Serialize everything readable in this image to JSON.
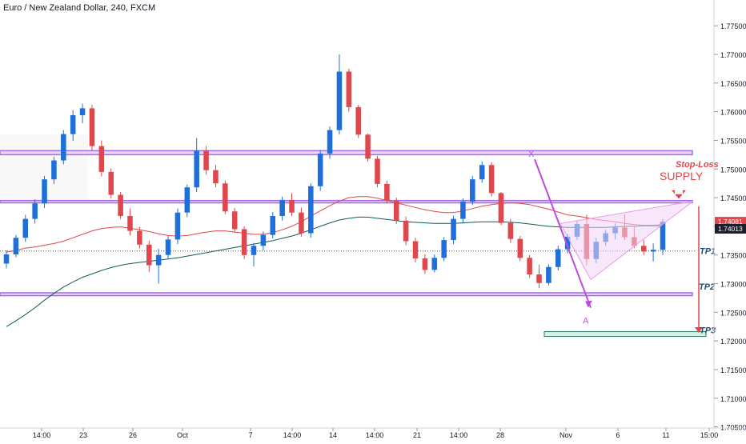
{
  "header": {
    "title": "Euro / New Zealand Dollar, 240, FXCM"
  },
  "colors": {
    "up": "#1e6fd9",
    "down": "#e0474c",
    "ma_fast": "#e0474c",
    "ma_slow": "#0c5b5b",
    "zone_border": "#a66be8",
    "zone_fill": "#e7d7fb",
    "pattern": "#c04be0",
    "tp_line": "#e0474c",
    "price_up": "#e0474c",
    "price_slow": "#1a1f2b",
    "tp3_box": "#2e7d6b"
  },
  "chart_data": {
    "type": "line",
    "ylim": [
      1.7055,
      1.7795
    ],
    "y_ticks": [
      "1.77500",
      "1.77000",
      "1.76500",
      "1.76000",
      "1.75500",
      "1.75000",
      "1.74500",
      "1.74000",
      "1.73500",
      "1.73000",
      "1.72500",
      "1.72000",
      "1.71500",
      "1.71000",
      "1.70500"
    ],
    "x_ticks": [
      "14:00",
      "23",
      "26",
      "Oct",
      "7",
      "14:00",
      "14",
      "14:00",
      "21",
      "14:00",
      "28",
      "Nov",
      "6",
      "11",
      "15:00"
    ],
    "zones": [
      {
        "name": "upper-zone",
        "y_top": 1.7532,
        "y_bottom": 1.7525
      },
      {
        "name": "middle-zone",
        "y_top": 1.7445,
        "y_bottom": 1.7441
      },
      {
        "name": "lower-zone",
        "y_top": 1.7284,
        "y_bottom": 1.7279
      }
    ],
    "tp1_level": 1.7357,
    "tp3_level": 1.7212,
    "last_price_fast": "1.74081",
    "last_price_slow": "1.74013",
    "annotations": {
      "stop_loss": "Stop-Loss",
      "supply": "SUPPLY",
      "tp1": "TP1",
      "tp2": "TP2",
      "tp3": "TP3",
      "x": "X",
      "a": "A"
    },
    "pattern": {
      "x_point": 1.7517,
      "a_point": 1.7258,
      "wedge_top_start": 1.7405,
      "wedge_bottom_start": 1.7307,
      "wedge_apex": 1.7444
    },
    "series": [
      {
        "type": "candlestick",
        "values": [
          [
            1.7335,
            1.7358,
            1.7327,
            1.7351
          ],
          [
            1.7351,
            1.7385,
            1.7346,
            1.738
          ],
          [
            1.738,
            1.742,
            1.7373,
            1.7413
          ],
          [
            1.7413,
            1.7447,
            1.7405,
            1.744
          ],
          [
            1.744,
            1.7488,
            1.7432,
            1.7482
          ],
          [
            1.7482,
            1.7521,
            1.7474,
            1.7515
          ],
          [
            1.7515,
            1.7568,
            1.7508,
            1.7561
          ],
          [
            1.7561,
            1.7603,
            1.7549,
            1.7594
          ],
          [
            1.7594,
            1.7614,
            1.758,
            1.7606
          ],
          [
            1.7606,
            1.7612,
            1.7532,
            1.754
          ],
          [
            1.754,
            1.755,
            1.7487,
            1.7495
          ],
          [
            1.7495,
            1.7501,
            1.7449,
            1.7455
          ],
          [
            1.7455,
            1.746,
            1.7413,
            1.7418
          ],
          [
            1.7418,
            1.7431,
            1.7384,
            1.7392
          ],
          [
            1.7392,
            1.7399,
            1.7361,
            1.7368
          ],
          [
            1.7368,
            1.7375,
            1.732,
            1.7332
          ],
          [
            1.7332,
            1.7361,
            1.73,
            1.735
          ],
          [
            1.735,
            1.7383,
            1.7342,
            1.7377
          ],
          [
            1.7377,
            1.7431,
            1.7369,
            1.7424
          ],
          [
            1.7424,
            1.7473,
            1.7416,
            1.7468
          ],
          [
            1.7468,
            1.7554,
            1.746,
            1.7532
          ],
          [
            1.7532,
            1.754,
            1.749,
            1.7498
          ],
          [
            1.7498,
            1.7507,
            1.7468,
            1.7475
          ],
          [
            1.7475,
            1.748,
            1.7421,
            1.7426
          ],
          [
            1.7426,
            1.7432,
            1.7389,
            1.7395
          ],
          [
            1.7395,
            1.74,
            1.7343,
            1.735
          ],
          [
            1.735,
            1.7371,
            1.733,
            1.7366
          ],
          [
            1.7366,
            1.7391,
            1.7358,
            1.7385
          ],
          [
            1.7385,
            1.7425,
            1.7379,
            1.7418
          ],
          [
            1.7418,
            1.7452,
            1.741,
            1.7446
          ],
          [
            1.7446,
            1.7458,
            1.7418,
            1.7424
          ],
          [
            1.7424,
            1.7433,
            1.7382,
            1.7388
          ],
          [
            1.7388,
            1.7475,
            1.738,
            1.747
          ],
          [
            1.747,
            1.7533,
            1.7462,
            1.7527
          ],
          [
            1.7527,
            1.7574,
            1.7518,
            1.7568
          ],
          [
            1.7568,
            1.77,
            1.756,
            1.767
          ],
          [
            1.767,
            1.7675,
            1.76,
            1.7608
          ],
          [
            1.7608,
            1.7612,
            1.7554,
            1.756
          ],
          [
            1.756,
            1.7562,
            1.7513,
            1.7518
          ],
          [
            1.7518,
            1.7523,
            1.7468,
            1.7474
          ],
          [
            1.7474,
            1.748,
            1.744,
            1.7445
          ],
          [
            1.7445,
            1.745,
            1.7404,
            1.741
          ],
          [
            1.741,
            1.7417,
            1.7367,
            1.7374
          ],
          [
            1.7374,
            1.738,
            1.7337,
            1.7344
          ],
          [
            1.7344,
            1.7351,
            1.7317,
            1.7324
          ],
          [
            1.7324,
            1.7351,
            1.732,
            1.7345
          ],
          [
            1.7345,
            1.7381,
            1.7339,
            1.7376
          ],
          [
            1.7376,
            1.7419,
            1.7369,
            1.7413
          ],
          [
            1.7413,
            1.7449,
            1.7405,
            1.7443
          ],
          [
            1.7443,
            1.7488,
            1.7437,
            1.7482
          ],
          [
            1.7482,
            1.7513,
            1.7476,
            1.7507
          ],
          [
            1.7507,
            1.7512,
            1.7452,
            1.7458
          ],
          [
            1.7458,
            1.746,
            1.7402,
            1.7406
          ],
          [
            1.7406,
            1.7413,
            1.7371,
            1.7378
          ],
          [
            1.7378,
            1.7383,
            1.7339,
            1.7345
          ],
          [
            1.7345,
            1.735,
            1.731,
            1.7316
          ],
          [
            1.7316,
            1.7333,
            1.7292,
            1.7301
          ],
          [
            1.7301,
            1.7334,
            1.7297,
            1.7329
          ],
          [
            1.7329,
            1.7366,
            1.7323,
            1.736
          ],
          [
            1.736,
            1.7387,
            1.7353,
            1.7382
          ],
          [
            1.7382,
            1.741,
            1.7376,
            1.7404
          ],
          [
            1.7404,
            1.742,
            1.7332,
            1.7343
          ],
          [
            1.7343,
            1.738,
            1.7336,
            1.7373
          ],
          [
            1.7373,
            1.7394,
            1.7366,
            1.7388
          ],
          [
            1.7388,
            1.7405,
            1.7377,
            1.7398
          ],
          [
            1.7398,
            1.7421,
            1.7376,
            1.7381
          ],
          [
            1.7381,
            1.7399,
            1.7362,
            1.7366
          ],
          [
            1.7366,
            1.7376,
            1.735,
            1.7356
          ],
          [
            1.7356,
            1.737,
            1.7339,
            1.7359
          ],
          [
            1.7359,
            1.7413,
            1.735,
            1.7408
          ]
        ]
      },
      {
        "name": "",
        "type": "line",
        "values": [
          1.7355,
          1.7358,
          1.7362,
          1.7364,
          1.7367,
          1.737,
          1.7374,
          1.738,
          1.7386,
          1.7392,
          1.7396,
          1.7398,
          1.7399,
          1.7397,
          1.7394,
          1.7391,
          1.7387,
          1.7384,
          1.7383,
          1.7384,
          1.7387,
          1.739,
          1.7392,
          1.7392,
          1.739,
          1.7388,
          1.7386,
          1.7386,
          1.7389,
          1.7394,
          1.74,
          1.7408,
          1.7418,
          1.7427,
          1.7436,
          1.7444,
          1.745,
          1.7452,
          1.7452,
          1.7449,
          1.7445,
          1.7441,
          1.7437,
          1.7433,
          1.7429,
          1.7426,
          1.7424,
          1.7424,
          1.7427,
          1.7431,
          1.7435,
          1.7438,
          1.744,
          1.7441,
          1.744,
          1.7438,
          1.7434,
          1.743,
          1.7425,
          1.742,
          1.7418,
          1.7415,
          1.7412,
          1.741,
          1.7408,
          1.7405,
          1.7403,
          1.7402,
          1.7402,
          1.7403
        ]
      },
      {
        "name": "",
        "type": "line",
        "values": [
          1.7225,
          1.7235,
          1.7246,
          1.7258,
          1.7271,
          1.7283,
          1.7294,
          1.7303,
          1.7311,
          1.7317,
          1.7323,
          1.7328,
          1.7332,
          1.7335,
          1.7337,
          1.7339,
          1.7341,
          1.7343,
          1.7345,
          1.7348,
          1.7351,
          1.7354,
          1.7357,
          1.736,
          1.7363,
          1.7366,
          1.7369,
          1.7372,
          1.7375,
          1.7379,
          1.7383,
          1.7388,
          1.7394,
          1.74,
          1.7406,
          1.7411,
          1.7414,
          1.7416,
          1.7416,
          1.7414,
          1.7412,
          1.741,
          1.7408,
          1.7407,
          1.7406,
          1.7405,
          1.7405,
          1.7405,
          1.7406,
          1.7407,
          1.7408,
          1.7408,
          1.7408,
          1.7407,
          1.7406,
          1.7404,
          1.7402,
          1.74,
          1.7399,
          1.7398,
          1.7398,
          1.7398,
          1.7398,
          1.7398,
          1.7399,
          1.74,
          1.74,
          1.7401,
          1.7401,
          1.7401
        ]
      }
    ]
  }
}
